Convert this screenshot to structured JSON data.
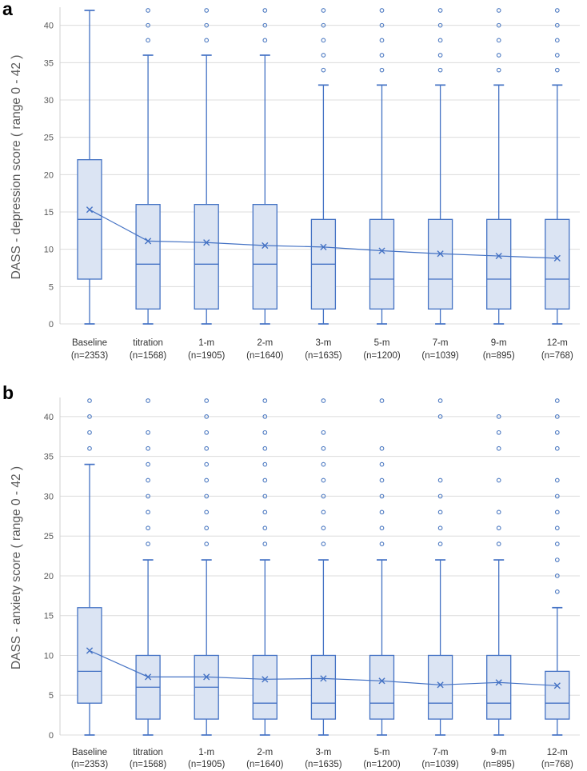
{
  "figure": {
    "panels": [
      {
        "panel_label": "a"
      },
      {
        "panel_label": "b"
      }
    ]
  },
  "colors": {
    "box_stroke": "#4472c4",
    "box_fill": "#dbe4f3",
    "mean_line": "#4472c4",
    "outlier_stroke": "#4d7ac2",
    "gridline": "#dcdcdc",
    "axis_line": "#d0d0d0",
    "axis_text": "#595959",
    "xlabel_text": "#333333",
    "panel_label_color": "#000000"
  },
  "chart_data": [
    {
      "panel_label": "a",
      "type": "box",
      "title": "",
      "ylabel": "DASS - depression score ( range 0 - 42 )",
      "xlabel": "",
      "ylim": [
        0,
        42
      ],
      "yticks": [
        0,
        5,
        10,
        15,
        20,
        25,
        30,
        35,
        40
      ],
      "grid": true,
      "legend": "none",
      "categories": [
        "Baseline",
        "titration",
        "1-m",
        "2-m",
        "3-m",
        "5-m",
        "7-m",
        "9-m",
        "12-m"
      ],
      "n_labels": [
        "(n=2353)",
        "(n=1568)",
        "(n=1905)",
        "(n=1640)",
        "(n=1635)",
        "(n=1200)",
        "(n=1039)",
        "(n=895)",
        "(n=768)"
      ],
      "boxes": [
        {
          "whisker_low": 0,
          "q1": 6,
          "median": 14,
          "q3": 22,
          "whisker_high": 42,
          "mean": 15.3,
          "outliers": []
        },
        {
          "whisker_low": 0,
          "q1": 2,
          "median": 8,
          "q3": 16,
          "whisker_high": 36,
          "mean": 11.1,
          "outliers": [
            38,
            40,
            42
          ]
        },
        {
          "whisker_low": 0,
          "q1": 2,
          "median": 8,
          "q3": 16,
          "whisker_high": 36,
          "mean": 10.9,
          "outliers": [
            38,
            40,
            42
          ]
        },
        {
          "whisker_low": 0,
          "q1": 2,
          "median": 8,
          "q3": 16,
          "whisker_high": 36,
          "mean": 10.5,
          "outliers": [
            38,
            40,
            42
          ]
        },
        {
          "whisker_low": 0,
          "q1": 2,
          "median": 8,
          "q3": 14,
          "whisker_high": 32,
          "mean": 10.3,
          "outliers": [
            34,
            36,
            38,
            40,
            42
          ]
        },
        {
          "whisker_low": 0,
          "q1": 2,
          "median": 6,
          "q3": 14,
          "whisker_high": 32,
          "mean": 9.8,
          "outliers": [
            34,
            36,
            38,
            40,
            42
          ]
        },
        {
          "whisker_low": 0,
          "q1": 2,
          "median": 6,
          "q3": 14,
          "whisker_high": 32,
          "mean": 9.4,
          "outliers": [
            34,
            36,
            38,
            40,
            42
          ]
        },
        {
          "whisker_low": 0,
          "q1": 2,
          "median": 6,
          "q3": 14,
          "whisker_high": 32,
          "mean": 9.1,
          "outliers": [
            34,
            36,
            38,
            40,
            42
          ]
        },
        {
          "whisker_low": 0,
          "q1": 2,
          "median": 6,
          "q3": 14,
          "whisker_high": 32,
          "mean": 8.8,
          "outliers": [
            34,
            36,
            38,
            40,
            42
          ]
        }
      ],
      "mean_series_name": "mean (x markers connected by line)"
    },
    {
      "panel_label": "b",
      "type": "box",
      "title": "",
      "ylabel": "DASS - anxiety score ( range 0 - 42 )",
      "xlabel": "",
      "ylim": [
        0,
        42
      ],
      "yticks": [
        0,
        5,
        10,
        15,
        20,
        25,
        30,
        35,
        40
      ],
      "grid": true,
      "legend": "none",
      "categories": [
        "Baseline",
        "titration",
        "1-m",
        "2-m",
        "3-m",
        "5-m",
        "7-m",
        "9-m",
        "12-m"
      ],
      "n_labels": [
        "(n=2353)",
        "(n=1568)",
        "(n=1905)",
        "(n=1640)",
        "(n=1635)",
        "(n=1200)",
        "(n=1039)",
        "(n=895)",
        "(n=768)"
      ],
      "boxes": [
        {
          "whisker_low": 0,
          "q1": 4,
          "median": 8,
          "q3": 16,
          "whisker_high": 34,
          "mean": 10.6,
          "outliers": [
            36,
            38,
            40,
            42
          ]
        },
        {
          "whisker_low": 0,
          "q1": 2,
          "median": 6,
          "q3": 10,
          "whisker_high": 22,
          "mean": 7.3,
          "outliers": [
            24,
            26,
            28,
            30,
            32,
            34,
            36,
            38,
            42
          ]
        },
        {
          "whisker_low": 0,
          "q1": 2,
          "median": 6,
          "q3": 10,
          "whisker_high": 22,
          "mean": 7.3,
          "outliers": [
            24,
            26,
            28,
            30,
            32,
            34,
            36,
            38,
            40,
            42
          ]
        },
        {
          "whisker_low": 0,
          "q1": 2,
          "median": 4,
          "q3": 10,
          "whisker_high": 22,
          "mean": 7.0,
          "outliers": [
            24,
            26,
            28,
            30,
            32,
            34,
            36,
            38,
            40,
            42
          ]
        },
        {
          "whisker_low": 0,
          "q1": 2,
          "median": 4,
          "q3": 10,
          "whisker_high": 22,
          "mean": 7.1,
          "outliers": [
            24,
            26,
            28,
            30,
            32,
            34,
            36,
            38,
            42
          ]
        },
        {
          "whisker_low": 0,
          "q1": 2,
          "median": 4,
          "q3": 10,
          "whisker_high": 22,
          "mean": 6.8,
          "outliers": [
            24,
            26,
            28,
            30,
            32,
            34,
            36,
            42
          ]
        },
        {
          "whisker_low": 0,
          "q1": 2,
          "median": 4,
          "q3": 10,
          "whisker_high": 22,
          "mean": 6.3,
          "outliers": [
            24,
            26,
            28,
            30,
            32,
            40,
            42
          ]
        },
        {
          "whisker_low": 0,
          "q1": 2,
          "median": 4,
          "q3": 10,
          "whisker_high": 22,
          "mean": 6.6,
          "outliers": [
            24,
            26,
            28,
            32,
            36,
            38,
            40
          ]
        },
        {
          "whisker_low": 0,
          "q1": 2,
          "median": 4,
          "q3": 8,
          "whisker_high": 16,
          "mean": 6.2,
          "outliers": [
            18,
            20,
            22,
            24,
            26,
            28,
            30,
            32,
            36,
            38,
            40,
            42
          ]
        }
      ],
      "mean_series_name": "mean (x markers connected by line)"
    }
  ]
}
